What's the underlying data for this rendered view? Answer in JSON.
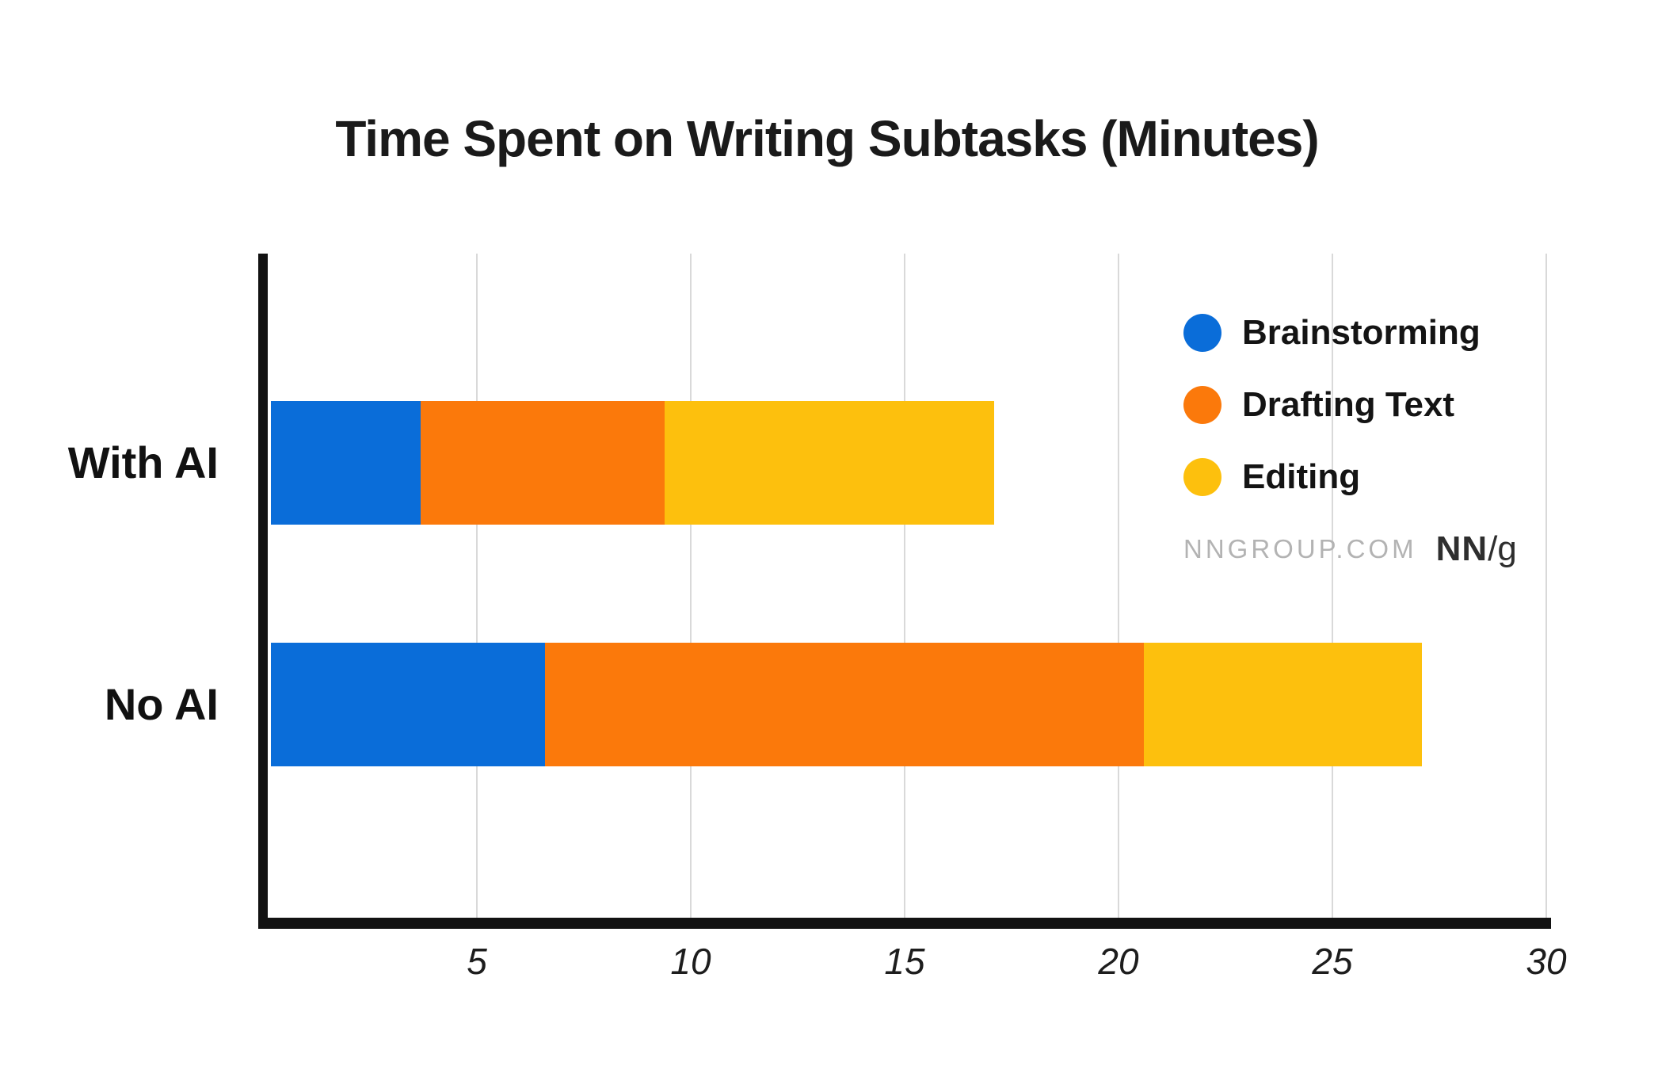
{
  "chart_data": {
    "type": "bar",
    "orientation": "horizontal",
    "stacked": true,
    "title": "Time Spent on Writing Subtasks (Minutes)",
    "categories": [
      "With AI",
      "No AI"
    ],
    "series": [
      {
        "name": "Brainstorming",
        "color": "#0A6DD9",
        "values": [
          3.5,
          6.4
        ]
      },
      {
        "name": "Drafting Text",
        "color": "#FB790B",
        "values": [
          5.7,
          14.0
        ]
      },
      {
        "name": "Editing",
        "color": "#FDC00D",
        "values": [
          7.7,
          6.5
        ]
      }
    ],
    "xlabel": "",
    "ylabel": "",
    "x_ticks": [
      5,
      10,
      15,
      20,
      25,
      30
    ],
    "xlim": [
      0,
      30
    ],
    "grid": "vertical-only",
    "legend_position": "upper-right"
  },
  "source": {
    "site": "NNGROUP.COM",
    "logo_bold": "NN",
    "logo_rest": "/g"
  }
}
